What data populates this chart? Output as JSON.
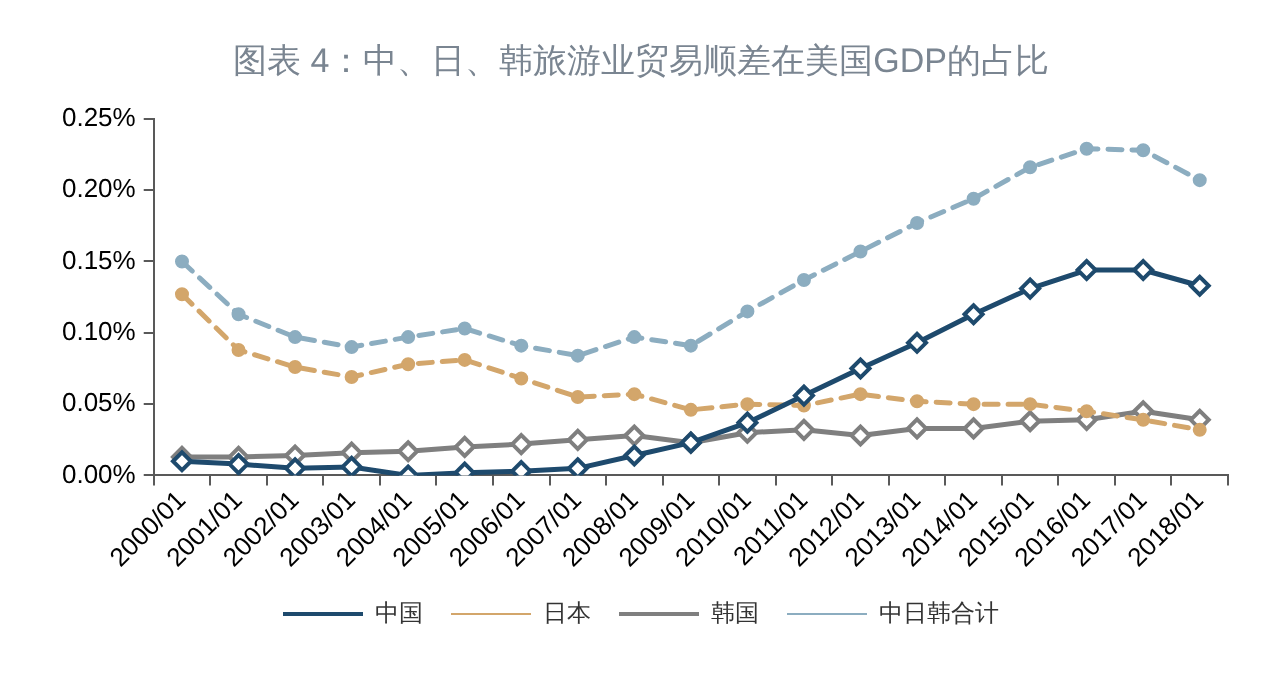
{
  "chart_data": {
    "type": "line",
    "title": "图表 4：中、日、韩旅游业贸易顺差在美国GDP的占比",
    "categories": [
      "2000/01",
      "2001/01",
      "2002/01",
      "2003/01",
      "2004/01",
      "2005/01",
      "2006/01",
      "2007/01",
      "2008/01",
      "2009/01",
      "2010/01",
      "2011/01",
      "2012/01",
      "2013/01",
      "2014/01",
      "2015/01",
      "2016/01",
      "2017/01",
      "2018/01"
    ],
    "series": [
      {
        "name": "中国",
        "color": "#1e4a6d",
        "values": [
          0.01,
          0.008,
          0.005,
          0.006,
          0.0,
          0.002,
          0.003,
          0.005,
          0.014,
          0.023,
          0.037,
          0.056,
          0.075,
          0.093,
          0.113,
          0.131,
          0.144,
          0.144,
          0.133
        ]
      },
      {
        "name": "日本",
        "color": "#d3a66b",
        "line_style": "dashed",
        "marker": "circle",
        "values": [
          0.127,
          0.088,
          0.076,
          0.069,
          0.078,
          0.081,
          0.068,
          0.055,
          0.057,
          0.046,
          0.05,
          0.049,
          0.057,
          0.052,
          0.05,
          0.05,
          0.045,
          0.039,
          0.032
        ]
      },
      {
        "name": "韩国",
        "color": "#7f7f7f",
        "values": [
          0.013,
          0.013,
          0.014,
          0.016,
          0.017,
          0.02,
          0.022,
          0.025,
          0.028,
          0.023,
          0.03,
          0.032,
          0.028,
          0.033,
          0.033,
          0.038,
          0.039,
          0.045,
          0.039
        ]
      },
      {
        "name": "中日韩合计",
        "color": "#8cadc0",
        "line_style": "dashed",
        "marker": "circle",
        "values": [
          0.15,
          0.113,
          0.097,
          0.09,
          0.097,
          0.103,
          0.091,
          0.084,
          0.097,
          0.091,
          0.115,
          0.137,
          0.157,
          0.177,
          0.194,
          0.216,
          0.229,
          0.228,
          0.207
        ]
      }
    ],
    "ylim": [
      0,
      0.25
    ],
    "yticks": [
      {
        "value": 0,
        "label": "0.00%"
      },
      {
        "value": 0.05,
        "label": "0.05%"
      },
      {
        "value": 0.1,
        "label": "0.10%"
      },
      {
        "value": 0.15,
        "label": "0.15%"
      },
      {
        "value": 0.2,
        "label": "0.20%"
      },
      {
        "value": 0.25,
        "label": "0.25%"
      }
    ],
    "grid": false,
    "legend": "bottom",
    "marker": "diamond",
    "line_style": "solid"
  }
}
